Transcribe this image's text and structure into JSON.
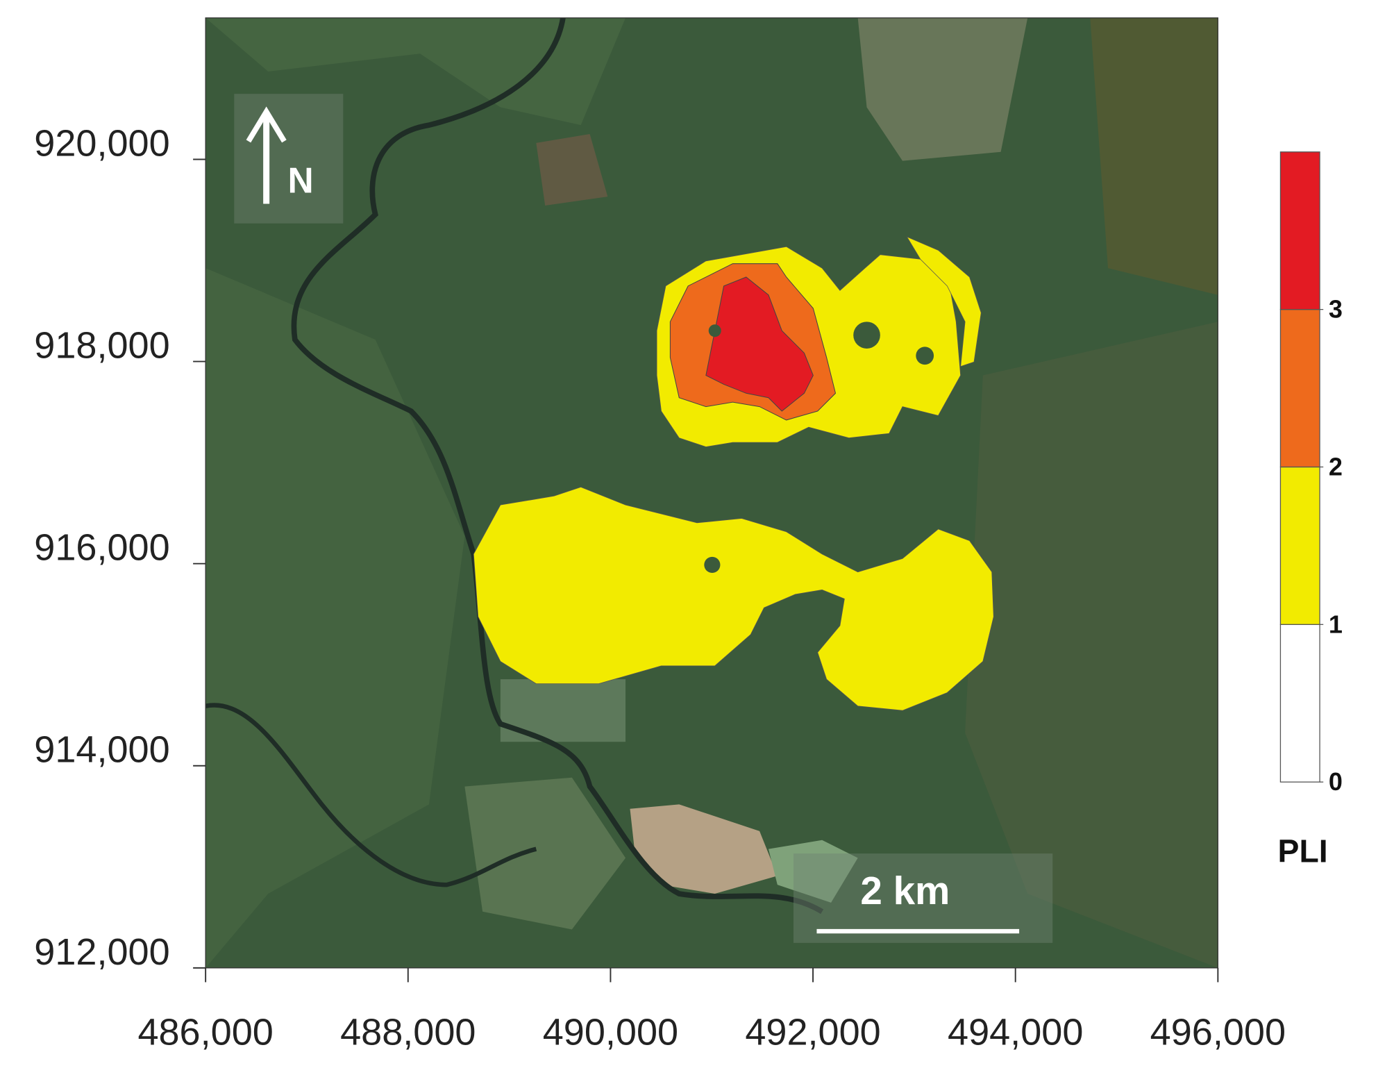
{
  "chart_data": {
    "type": "contour-map",
    "xlim": [
      486000,
      496000
    ],
    "ylim": [
      912000,
      921400
    ],
    "xticks": [
      {
        "value": 486000,
        "label": "486,000"
      },
      {
        "value": 488000,
        "label": "488,000"
      },
      {
        "value": 490000,
        "label": "490,000"
      },
      {
        "value": 492000,
        "label": "492,000"
      },
      {
        "value": 494000,
        "label": "494,000"
      },
      {
        "value": 496000,
        "label": "496,000"
      }
    ],
    "yticks": [
      {
        "value": 912000,
        "label": "912,000"
      },
      {
        "value": 914000,
        "label": "914,000"
      },
      {
        "value": 916000,
        "label": "916,000"
      },
      {
        "value": 918000,
        "label": "918,000"
      },
      {
        "value": 920000,
        "label": "920,000"
      }
    ],
    "legend": {
      "title": "PLI",
      "bounds": [
        0,
        1,
        2,
        3,
        4
      ],
      "ticks": [
        0,
        1,
        2,
        3
      ],
      "colors": [
        "#ffffff",
        "#f2eb00",
        "#ee6a1c",
        "#e31b23"
      ]
    },
    "north_label": "N",
    "scale_bar": {
      "label": "2 km",
      "length": 2000
    }
  }
}
